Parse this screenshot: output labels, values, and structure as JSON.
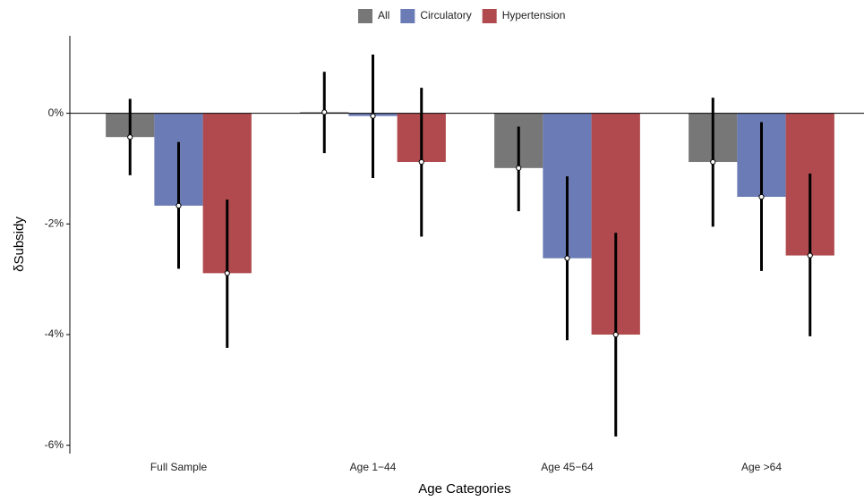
{
  "chart_data": {
    "type": "bar",
    "x_label": "Age Categories",
    "y_label": "δSubsidy",
    "categories": [
      "Full Sample",
      "Age 1−44",
      "Age 45−64",
      "Age >64"
    ],
    "series": [
      {
        "name": "All",
        "color": "#777777",
        "values": [
          -0.43,
          0.02,
          -0.99,
          -0.88
        ],
        "ci_low": [
          -1.12,
          -0.72,
          -1.77,
          -2.05
        ],
        "ci_high": [
          0.26,
          0.75,
          -0.24,
          0.28
        ]
      },
      {
        "name": "Circulatory",
        "color": "#6a7bb5",
        "values": [
          -1.67,
          -0.05,
          -2.62,
          -1.51
        ],
        "ci_low": [
          -2.81,
          -1.17,
          -4.1,
          -2.85
        ],
        "ci_high": [
          -0.52,
          1.06,
          -1.14,
          -0.16
        ]
      },
      {
        "name": "Hypertension",
        "color": "#b04a4e",
        "values": [
          -2.89,
          -0.88,
          -4.0,
          -2.57
        ],
        "ci_low": [
          -4.24,
          -2.23,
          -5.84,
          -4.03
        ],
        "ci_high": [
          -1.56,
          0.46,
          -2.16,
          -1.09
        ]
      }
    ],
    "ylim": [
      -6.15,
      1.4
    ],
    "yticks": [
      {
        "value": -6,
        "label": "-6%"
      },
      {
        "value": -4,
        "label": "-4%"
      },
      {
        "value": -2,
        "label": "-2%"
      },
      {
        "value": 0,
        "label": "0%"
      }
    ],
    "legend": "top",
    "grid": false
  }
}
